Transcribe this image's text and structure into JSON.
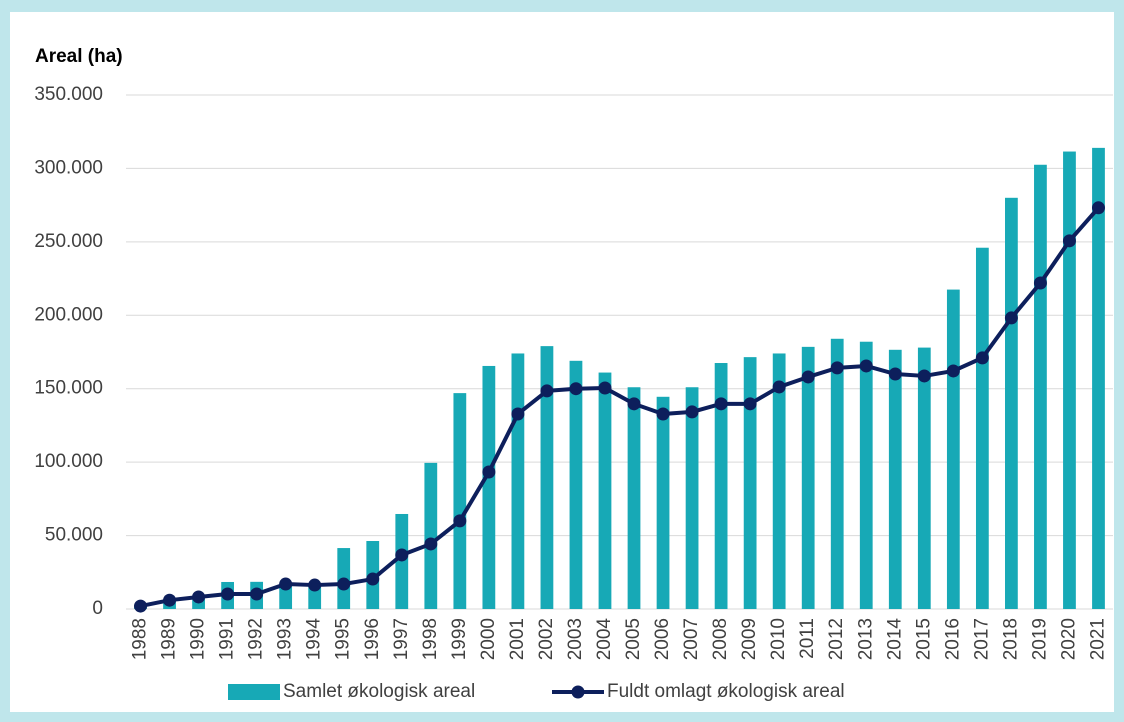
{
  "chart_data": {
    "type": "bar+line",
    "y_label": "Areal (ha)",
    "categories": [
      "1988",
      "1989",
      "1990",
      "1991",
      "1992",
      "1993",
      "1994",
      "1995",
      "1996",
      "1997",
      "1998",
      "1999",
      "2000",
      "2001",
      "2002",
      "2003",
      "2004",
      "2005",
      "2006",
      "2007",
      "2008",
      "2009",
      "2010",
      "2011",
      "2012",
      "2013",
      "2014",
      "2015",
      "2016",
      "2017",
      "2018",
      "2019",
      "2020",
      "2021"
    ],
    "series": [
      {
        "name": "Samlet økologisk areal",
        "type": "bar",
        "color": "#17a9b6",
        "values": [
          1500,
          5000,
          7000,
          18400,
          18500,
          16000,
          16000,
          41500,
          46300,
          64700,
          99500,
          147000,
          165500,
          174000,
          179000,
          169000,
          161000,
          151000,
          144500,
          151000,
          167500,
          171500,
          174000,
          178500,
          184000,
          182000,
          176500,
          178000,
          217500,
          246000,
          280000,
          302500,
          311500,
          314000
        ]
      },
      {
        "name": "Fuldt omlagt økologisk areal",
        "type": "line",
        "color": "#0d1f5c",
        "values": [
          2000,
          6000,
          8200,
          10200,
          10200,
          17000,
          16300,
          17000,
          20400,
          36800,
          44300,
          60000,
          93300,
          132800,
          148500,
          150000,
          150500,
          139700,
          132800,
          134200,
          139700,
          139700,
          151200,
          158000,
          164200,
          165500,
          160000,
          158700,
          162100,
          171000,
          198200,
          222000,
          250700,
          273200
        ]
      }
    ],
    "ylim": [
      0,
      350000
    ],
    "yticks": [
      0,
      {
        "value": 50000,
        "label": "50.000"
      },
      {
        "value": 100000,
        "label": "100.000"
      },
      {
        "value": 150000,
        "label": "150.000"
      },
      {
        "value": 200000,
        "label": "200.000"
      },
      {
        "value": 250000,
        "label": "250.000"
      },
      {
        "value": 300000,
        "label": "300.000"
      },
      {
        "value": 350000,
        "label": "350.000"
      }
    ],
    "grid": true,
    "legend": "bottom"
  }
}
